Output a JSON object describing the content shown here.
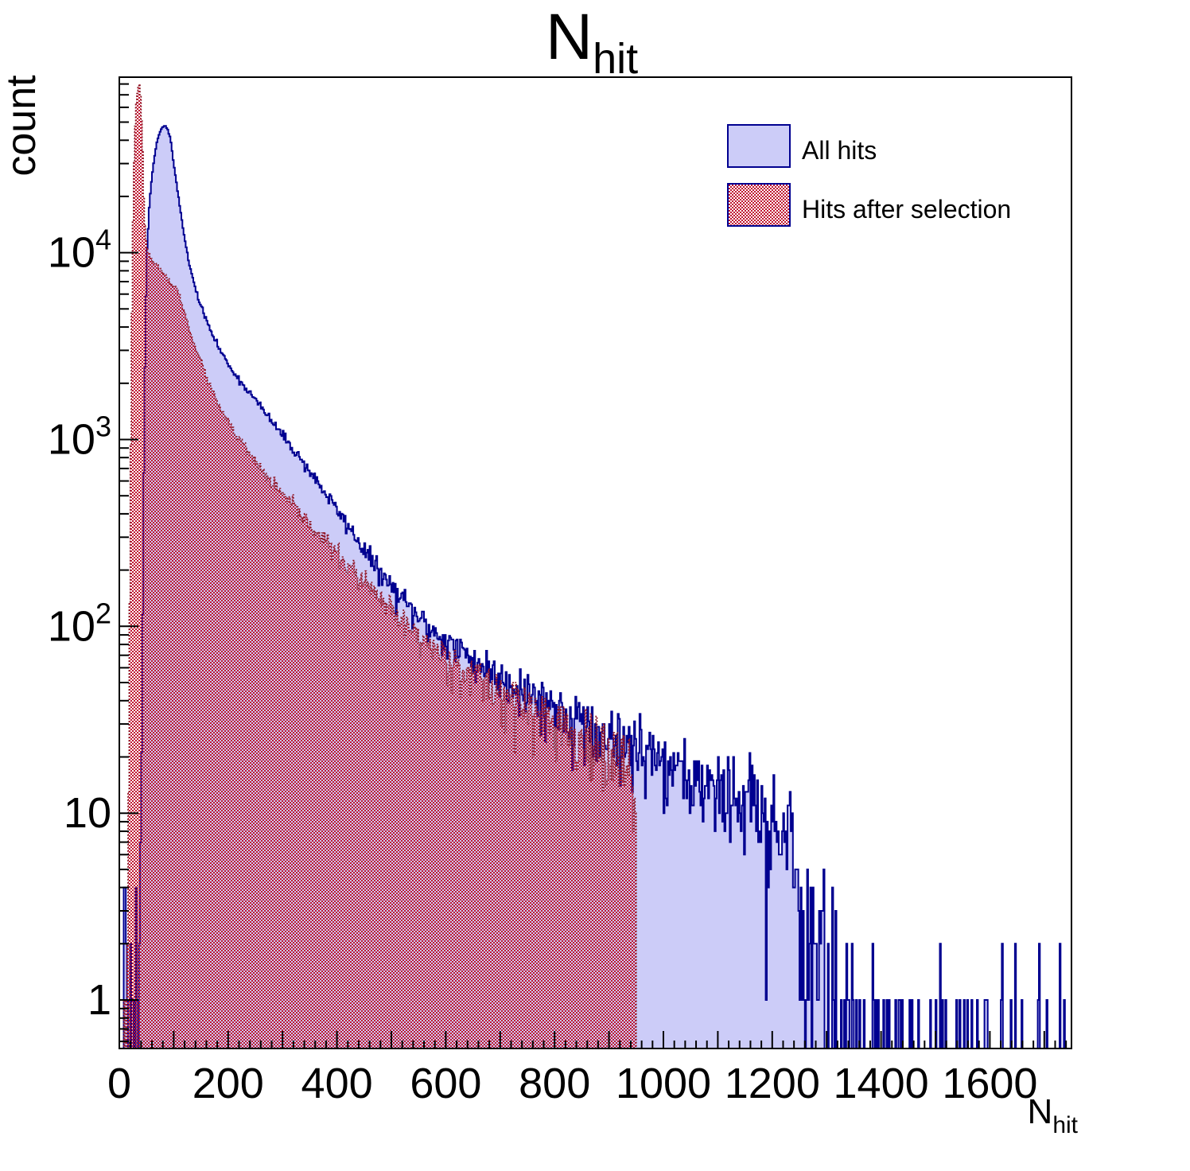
{
  "title": {
    "main": "N",
    "sub": "hit"
  },
  "axes": {
    "x": {
      "label_main": "N",
      "label_sub": "hit",
      "min": 0,
      "max": 1750,
      "minor_step": 20,
      "major_step": 100,
      "ticks": [
        {
          "v": 0,
          "label": "0"
        },
        {
          "v": 200,
          "label": "200"
        },
        {
          "v": 400,
          "label": "400"
        },
        {
          "v": 600,
          "label": "600"
        },
        {
          "v": 800,
          "label": "800"
        },
        {
          "v": 1000,
          "label": "1000"
        },
        {
          "v": 1200,
          "label": "1200"
        },
        {
          "v": 1400,
          "label": "1400"
        },
        {
          "v": 1600,
          "label": "1600"
        }
      ]
    },
    "y": {
      "label": "count",
      "scale": "log",
      "min": 0.55,
      "max": 87000,
      "decades": [
        {
          "v": 1,
          "base": "1",
          "exp": ""
        },
        {
          "v": 10,
          "base": "10",
          "exp": ""
        },
        {
          "v": 100,
          "base": "10",
          "exp": "2"
        },
        {
          "v": 1000,
          "base": "10",
          "exp": "3"
        },
        {
          "v": 10000,
          "base": "10",
          "exp": "4"
        }
      ]
    }
  },
  "legend": {
    "entries": [
      {
        "label": "All hits",
        "swatch": "solid"
      },
      {
        "label": "Hits after selection",
        "swatch": "hatch"
      }
    ]
  },
  "colors": {
    "blue_fill": "#ccccf8",
    "blue_line": "#000090",
    "red_hatch": "#c01530",
    "red_line": "#8b1a28",
    "frame": "#000000",
    "text": "#000000"
  },
  "chart_data": {
    "type": "histogram-overlay",
    "title": "N_hit",
    "xlabel": "N_hit",
    "ylabel": "count",
    "y_scale": "log",
    "xlim": [
      0,
      1750
    ],
    "ylim": [
      0.55,
      87000
    ],
    "bin_width": 2,
    "grid": false,
    "legend_position": "top-right",
    "series": [
      {
        "name": "All hits",
        "style": "solid-fill",
        "seed": 11,
        "range": [
          0,
          1750
        ],
        "cutoff": null,
        "peak": {
          "x": 84,
          "count": 48000
        },
        "anchors": [
          [
            2,
            0.5
          ],
          [
            6,
            0.9
          ],
          [
            10,
            7
          ],
          [
            14,
            1.2
          ],
          [
            20,
            0.6
          ],
          [
            26,
            0.7
          ],
          [
            32,
            1
          ],
          [
            36,
            1.8
          ],
          [
            39,
            5
          ],
          [
            42,
            60
          ],
          [
            45,
            700
          ],
          [
            48,
            4500
          ],
          [
            51,
            10500
          ],
          [
            55,
            17500
          ],
          [
            59,
            24000
          ],
          [
            64,
            32000
          ],
          [
            69,
            39000
          ],
          [
            74,
            44000
          ],
          [
            79,
            47000
          ],
          [
            84,
            48000
          ],
          [
            89,
            45500
          ],
          [
            94,
            40500
          ],
          [
            100,
            30000
          ],
          [
            107,
            21500
          ],
          [
            113,
            16500
          ],
          [
            120,
            12000
          ],
          [
            128,
            8800
          ],
          [
            137,
            6900
          ],
          [
            147,
            5500
          ],
          [
            158,
            4500
          ],
          [
            170,
            3700
          ],
          [
            183,
            3100
          ],
          [
            196,
            2650
          ],
          [
            210,
            2300
          ],
          [
            225,
            2000
          ],
          [
            240,
            1780
          ],
          [
            256,
            1550
          ],
          [
            273,
            1330
          ],
          [
            292,
            1130
          ],
          [
            312,
            950
          ],
          [
            333,
            790
          ],
          [
            356,
            640
          ],
          [
            380,
            510
          ],
          [
            405,
            400
          ],
          [
            430,
            315
          ],
          [
            455,
            245
          ],
          [
            480,
            192
          ],
          [
            505,
            155
          ],
          [
            530,
            128
          ],
          [
            560,
            104
          ],
          [
            590,
            88
          ],
          [
            620,
            76
          ],
          [
            655,
            65
          ],
          [
            690,
            56
          ],
          [
            725,
            49
          ],
          [
            760,
            43
          ],
          [
            800,
            37
          ],
          [
            840,
            32
          ],
          [
            880,
            27.5
          ],
          [
            920,
            24
          ],
          [
            960,
            21
          ],
          [
            1000,
            18.5
          ],
          [
            1040,
            16.5
          ],
          [
            1080,
            14.5
          ],
          [
            1120,
            12.5
          ],
          [
            1160,
            11
          ],
          [
            1200,
            9.5
          ],
          [
            1248,
            8
          ],
          [
            1252,
            2.4
          ],
          [
            1275,
            1.3
          ],
          [
            1310,
            0.9
          ],
          [
            1345,
            0.65
          ],
          [
            1390,
            0.45
          ],
          [
            1450,
            0.32
          ],
          [
            1540,
            0.27
          ],
          [
            1650,
            0.24
          ],
          [
            1750,
            0.22
          ]
        ]
      },
      {
        "name": "Hits after selection",
        "style": "hatch-fill",
        "seed": 23,
        "range": [
          0,
          950
        ],
        "cutoff": 950,
        "peak": {
          "x": 37,
          "count": 79500
        },
        "anchors": [
          [
            2,
            0.35
          ],
          [
            8,
            0.35
          ],
          [
            12,
            0.5
          ],
          [
            14,
            1
          ],
          [
            16,
            5
          ],
          [
            18,
            45
          ],
          [
            20,
            400
          ],
          [
            22,
            2400
          ],
          [
            24,
            9500
          ],
          [
            26,
            23000
          ],
          [
            28,
            41000
          ],
          [
            31,
            63000
          ],
          [
            34,
            76500
          ],
          [
            37,
            79500
          ],
          [
            39,
            69000
          ],
          [
            41,
            51000
          ],
          [
            43,
            35000
          ],
          [
            45,
            20000
          ],
          [
            47,
            14000
          ],
          [
            50,
            11000
          ],
          [
            54,
            9800
          ],
          [
            60,
            9200
          ],
          [
            68,
            8600
          ],
          [
            77,
            8000
          ],
          [
            87,
            7300
          ],
          [
            97,
            6800
          ],
          [
            107,
            6300
          ],
          [
            116,
            5200
          ],
          [
            125,
            4250
          ],
          [
            134,
            3500
          ],
          [
            144,
            2900
          ],
          [
            155,
            2400
          ],
          [
            166,
            1960
          ],
          [
            178,
            1620
          ],
          [
            190,
            1380
          ],
          [
            204,
            1180
          ],
          [
            219,
            1010
          ],
          [
            235,
            870
          ],
          [
            252,
            745
          ],
          [
            270,
            640
          ],
          [
            290,
            545
          ],
          [
            312,
            465
          ],
          [
            335,
            392
          ],
          [
            360,
            328
          ],
          [
            385,
            273
          ],
          [
            410,
            228
          ],
          [
            435,
            190
          ],
          [
            460,
            159
          ],
          [
            485,
            133
          ],
          [
            510,
            112
          ],
          [
            540,
            94
          ],
          [
            570,
            80
          ],
          [
            605,
            68
          ],
          [
            640,
            58
          ],
          [
            678,
            49
          ],
          [
            716,
            42
          ],
          [
            755,
            36
          ],
          [
            795,
            31
          ],
          [
            835,
            26.5
          ],
          [
            875,
            22.5
          ],
          [
            915,
            19
          ],
          [
            950,
            16
          ]
        ]
      }
    ]
  }
}
